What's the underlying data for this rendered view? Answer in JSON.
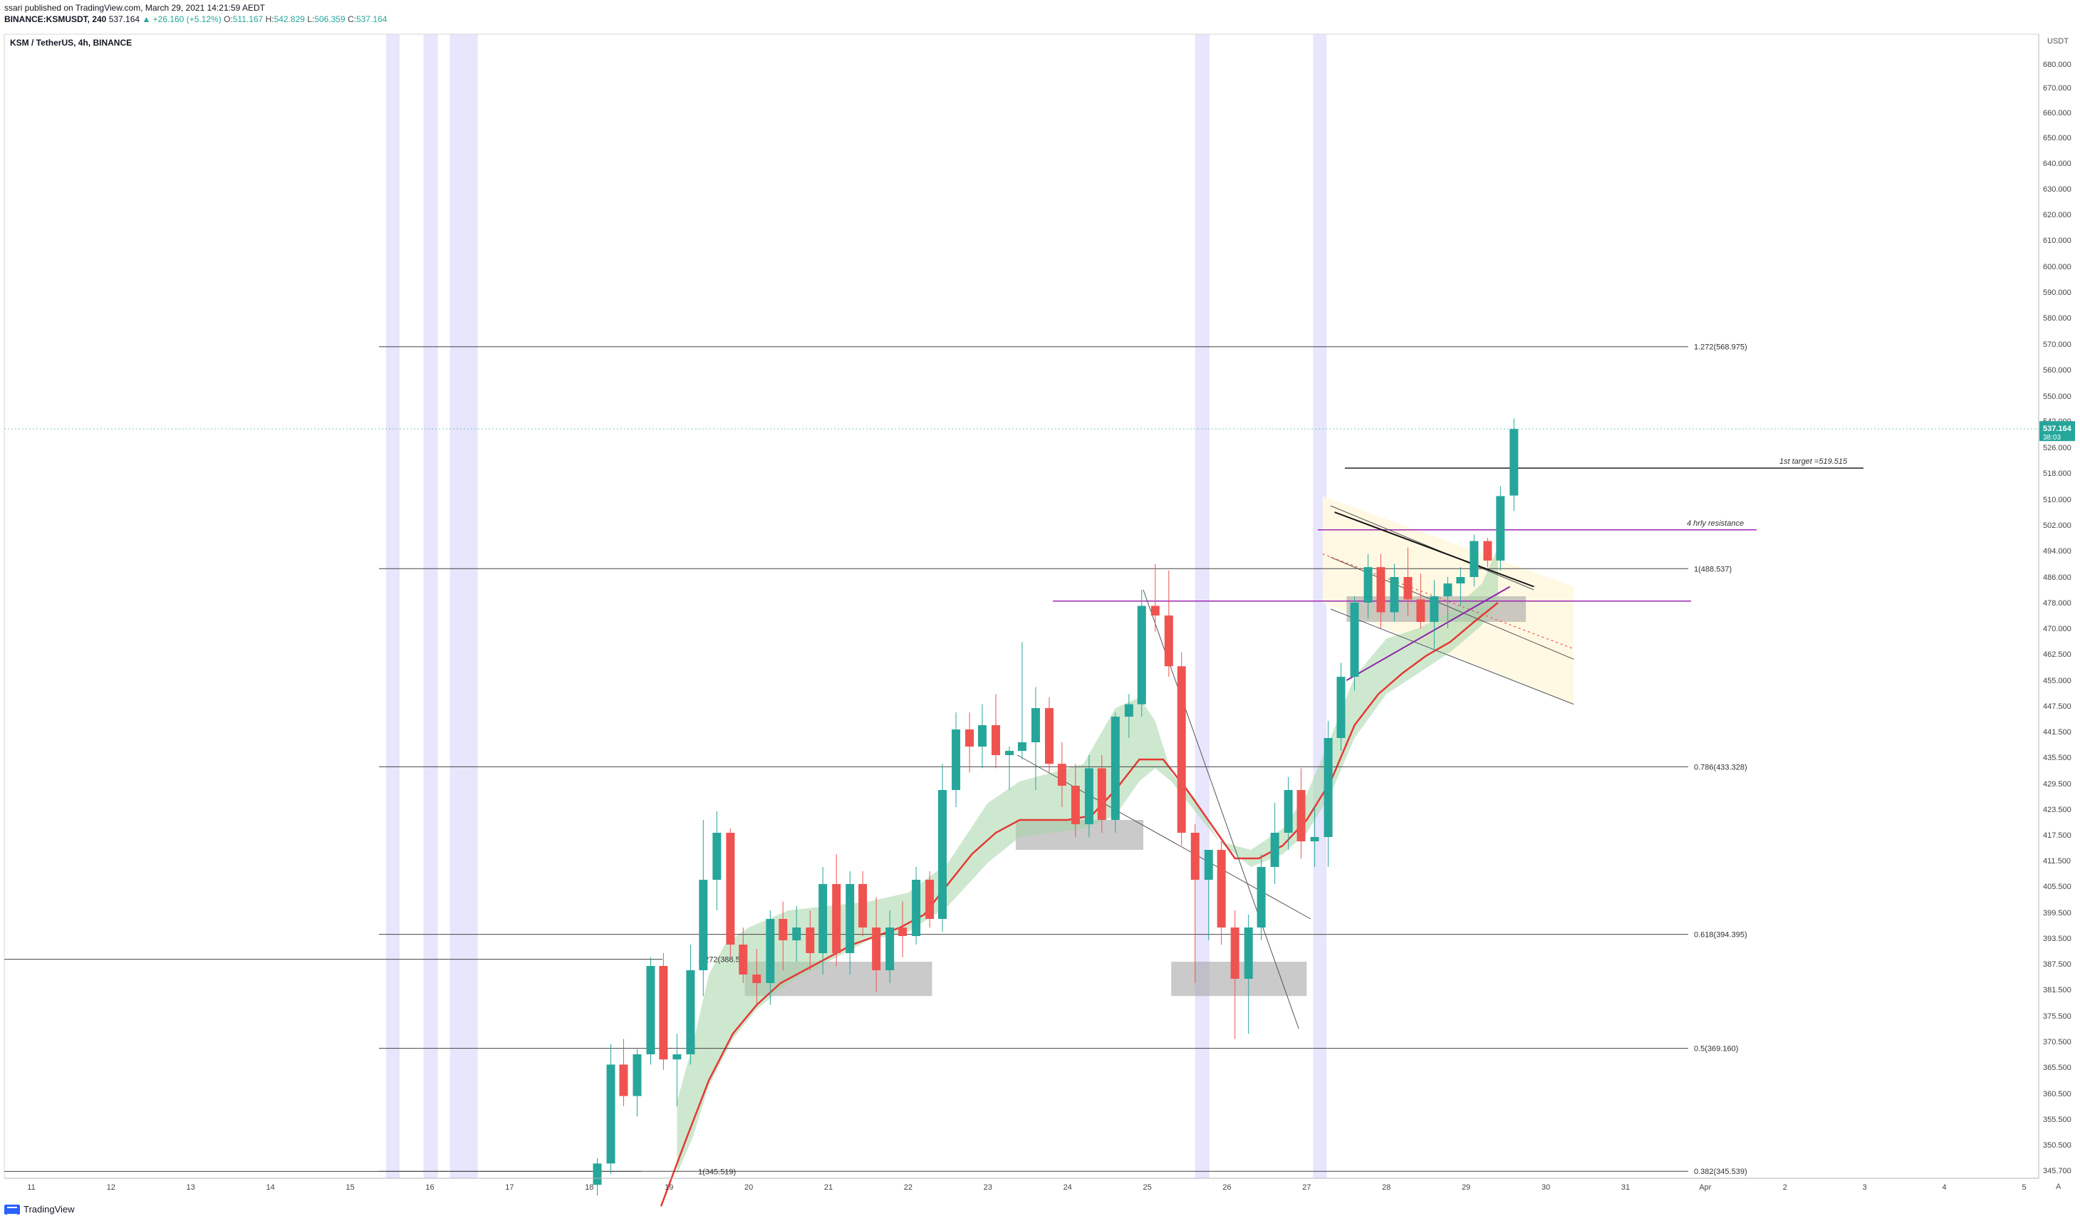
{
  "header": {
    "published": "ssari published on TradingView.com, March 29, 2021 14:21:59 AEDT",
    "ticker": "BINANCE:KSMUSDT, 240",
    "price": "537.164",
    "change": "▲ +26.160 (+5.12%)",
    "o_label": "O:",
    "o_value": "511.167",
    "h_label": "H:",
    "h_value": "542.829",
    "l_label": "L:",
    "l_value": "506.359",
    "c_label": "C:",
    "c_value": "537.164"
  },
  "legend": {
    "symbol": "KSM / TetherUS, 4h, BINANCE"
  },
  "footer": {
    "brand": "TradingView"
  },
  "controls": {
    "currency": "USDT",
    "log_toggle": "A"
  },
  "colors": {
    "up": "#26a69a",
    "down": "#ef5350",
    "band": "#e3e2fb",
    "cloud": "#a5d6a7",
    "ma": "#e53935",
    "magenta": "#9c27b0",
    "zone": "#9e9e9e",
    "price_tag": "#26a69a"
  },
  "chart_data": {
    "type": "candlestick",
    "timeframe": "4h",
    "x_tick_labels": [
      "11",
      "12",
      "13",
      "14",
      "15",
      "16",
      "17",
      "18",
      "19",
      "20",
      "21",
      "22",
      "23",
      "24",
      "25",
      "26",
      "27",
      "28",
      "29",
      "30",
      "31",
      "Apr",
      "2",
      "3",
      "4",
      "5"
    ],
    "y_tick_labels": [
      "680.000",
      "670.000",
      "660.000",
      "650.000",
      "640.000",
      "630.000",
      "620.000",
      "610.000",
      "600.000",
      "590.000",
      "580.000",
      "570.000",
      "560.000",
      "550.000",
      "542.000",
      "526.000",
      "518.000",
      "510.000",
      "502.000",
      "494.000",
      "486.000",
      "478.000",
      "470.000",
      "462.500",
      "455.000",
      "447.500",
      "441.500",
      "435.500",
      "429.500",
      "423.500",
      "417.500",
      "411.500",
      "405.500",
      "399.500",
      "393.500",
      "387.500",
      "381.500",
      "375.500",
      "370.500",
      "365.500",
      "360.500",
      "355.500",
      "350.500",
      "345.700"
    ],
    "last_price": {
      "value": "537.164",
      "countdown": "38:03"
    },
    "fib_levels": [
      {
        "label": "1.272(568.975)",
        "value": 568.975
      },
      {
        "label": "1(488.537)",
        "value": 488.537
      },
      {
        "label": "0.786(433.328)",
        "value": 433.328
      },
      {
        "label": "0.618(394.395)",
        "value": 394.395
      },
      {
        "label": "0.5(369.160)",
        "value": 369.16
      },
      {
        "label": "0.382(345.539)",
        "value": 345.539
      }
    ],
    "old_fib_labels": [
      {
        "label": "1.272(388.57)",
        "value": 388.57
      },
      {
        "label": "1(345.519)",
        "value": 345.519
      }
    ],
    "annotations": [
      {
        "text": "1st target =519.515",
        "value": 519.515
      },
      {
        "text": "4 hrly resistance",
        "value": 500.5
      }
    ],
    "candles": [
      {
        "t": 18.1,
        "o": 343.0,
        "h": 348.0,
        "l": 341.0,
        "c": 347.0
      },
      {
        "t": 18.27,
        "o": 347.0,
        "h": 370.0,
        "l": 345.0,
        "c": 366.0
      },
      {
        "t": 18.43,
        "o": 366.0,
        "h": 371.0,
        "l": 358.0,
        "c": 360.0
      },
      {
        "t": 18.6,
        "o": 360.0,
        "h": 369.0,
        "l": 356.0,
        "c": 368.0
      },
      {
        "t": 18.77,
        "o": 368.0,
        "h": 389.0,
        "l": 366.0,
        "c": 387.0
      },
      {
        "t": 18.93,
        "o": 387.0,
        "h": 390.0,
        "l": 365.0,
        "c": 367.0
      },
      {
        "t": 19.1,
        "o": 367.0,
        "h": 372.0,
        "l": 358.0,
        "c": 368.0
      },
      {
        "t": 19.27,
        "o": 368.0,
        "h": 392.0,
        "l": 366.0,
        "c": 386.0
      },
      {
        "t": 19.43,
        "o": 386.0,
        "h": 421.0,
        "l": 380.0,
        "c": 407.0
      },
      {
        "t": 19.6,
        "o": 407.0,
        "h": 423.0,
        "l": 400.0,
        "c": 418.0
      },
      {
        "t": 19.77,
        "o": 418.0,
        "h": 419.0,
        "l": 389.0,
        "c": 392.0
      },
      {
        "t": 19.93,
        "o": 392.0,
        "h": 396.0,
        "l": 383.0,
        "c": 385.0
      },
      {
        "t": 20.1,
        "o": 385.0,
        "h": 391.0,
        "l": 378.0,
        "c": 383.0
      },
      {
        "t": 20.27,
        "o": 383.0,
        "h": 400.0,
        "l": 378.0,
        "c": 398.0
      },
      {
        "t": 20.43,
        "o": 398.0,
        "h": 402.0,
        "l": 386.0,
        "c": 393.0
      },
      {
        "t": 20.6,
        "o": 393.0,
        "h": 401.0,
        "l": 388.0,
        "c": 396.0
      },
      {
        "t": 20.77,
        "o": 396.0,
        "h": 400.0,
        "l": 386.0,
        "c": 390.0
      },
      {
        "t": 20.93,
        "o": 390.0,
        "h": 410.0,
        "l": 385.0,
        "c": 406.0
      },
      {
        "t": 21.1,
        "o": 406.0,
        "h": 413.0,
        "l": 387.0,
        "c": 390.0
      },
      {
        "t": 21.27,
        "o": 390.0,
        "h": 409.0,
        "l": 385.0,
        "c": 406.0
      },
      {
        "t": 21.43,
        "o": 406.0,
        "h": 409.0,
        "l": 394.0,
        "c": 396.0
      },
      {
        "t": 21.6,
        "o": 396.0,
        "h": 403.0,
        "l": 381.0,
        "c": 386.0
      },
      {
        "t": 21.77,
        "o": 386.0,
        "h": 400.0,
        "l": 383.0,
        "c": 396.0
      },
      {
        "t": 21.93,
        "o": 396.0,
        "h": 402.0,
        "l": 389.0,
        "c": 394.0
      },
      {
        "t": 22.1,
        "o": 394.0,
        "h": 410.0,
        "l": 392.0,
        "c": 407.0
      },
      {
        "t": 22.27,
        "o": 407.0,
        "h": 409.0,
        "l": 396.0,
        "c": 398.0
      },
      {
        "t": 22.43,
        "o": 398.0,
        "h": 434.0,
        "l": 395.0,
        "c": 428.0
      },
      {
        "t": 22.6,
        "o": 428.0,
        "h": 446.0,
        "l": 424.0,
        "c": 442.0
      },
      {
        "t": 22.77,
        "o": 442.0,
        "h": 446.0,
        "l": 432.0,
        "c": 438.0
      },
      {
        "t": 22.93,
        "o": 438.0,
        "h": 448.0,
        "l": 433.0,
        "c": 443.0
      },
      {
        "t": 23.1,
        "o": 443.0,
        "h": 451.0,
        "l": 433.0,
        "c": 436.0
      },
      {
        "t": 23.27,
        "o": 436.0,
        "h": 438.0,
        "l": 428.0,
        "c": 437.0
      },
      {
        "t": 23.43,
        "o": 437.0,
        "h": 466.0,
        "l": 435.0,
        "c": 439.0
      },
      {
        "t": 23.6,
        "o": 439.0,
        "h": 453.0,
        "l": 428.0,
        "c": 447.0
      },
      {
        "t": 23.77,
        "o": 447.0,
        "h": 450.0,
        "l": 432.0,
        "c": 434.0
      },
      {
        "t": 23.93,
        "o": 434.0,
        "h": 439.0,
        "l": 424.0,
        "c": 429.0
      },
      {
        "t": 24.1,
        "o": 429.0,
        "h": 434.0,
        "l": 417.0,
        "c": 420.0
      },
      {
        "t": 24.27,
        "o": 420.0,
        "h": 436.0,
        "l": 417.0,
        "c": 433.0
      },
      {
        "t": 24.43,
        "o": 433.0,
        "h": 436.0,
        "l": 418.0,
        "c": 421.0
      },
      {
        "t": 24.6,
        "o": 421.0,
        "h": 446.0,
        "l": 418.0,
        "c": 445.0
      },
      {
        "t": 24.77,
        "o": 445.0,
        "h": 451.0,
        "l": 440.0,
        "c": 448.0
      },
      {
        "t": 24.93,
        "o": 448.0,
        "h": 482.0,
        "l": 445.0,
        "c": 477.0
      },
      {
        "t": 25.1,
        "o": 477.0,
        "h": 490.0,
        "l": 469.0,
        "c": 474.0
      },
      {
        "t": 25.27,
        "o": 474.0,
        "h": 488.0,
        "l": 456.0,
        "c": 459.0
      },
      {
        "t": 25.43,
        "o": 459.0,
        "h": 463.0,
        "l": 415.0,
        "c": 418.0
      },
      {
        "t": 25.6,
        "o": 418.0,
        "h": 420.0,
        "l": 383.0,
        "c": 407.0
      },
      {
        "t": 25.77,
        "o": 407.0,
        "h": 412.0,
        "l": 393.0,
        "c": 414.0
      },
      {
        "t": 25.93,
        "o": 414.0,
        "h": 416.0,
        "l": 392.0,
        "c": 396.0
      },
      {
        "t": 26.1,
        "o": 396.0,
        "h": 400.0,
        "l": 371.0,
        "c": 384.0
      },
      {
        "t": 26.27,
        "o": 384.0,
        "h": 399.0,
        "l": 372.0,
        "c": 396.0
      },
      {
        "t": 26.43,
        "o": 396.0,
        "h": 413.0,
        "l": 393.0,
        "c": 410.0
      },
      {
        "t": 26.6,
        "o": 410.0,
        "h": 425.0,
        "l": 406.0,
        "c": 418.0
      },
      {
        "t": 26.77,
        "o": 418.0,
        "h": 431.0,
        "l": 414.0,
        "c": 428.0
      },
      {
        "t": 26.93,
        "o": 428.0,
        "h": 433.0,
        "l": 412.0,
        "c": 416.0
      },
      {
        "t": 27.1,
        "o": 416.0,
        "h": 424.0,
        "l": 410.0,
        "c": 417.0
      },
      {
        "t": 27.27,
        "o": 417.0,
        "h": 444.0,
        "l": 410.0,
        "c": 440.0
      },
      {
        "t": 27.43,
        "o": 440.0,
        "h": 460.0,
        "l": 437.0,
        "c": 456.0
      },
      {
        "t": 27.6,
        "o": 456.0,
        "h": 480.0,
        "l": 452.0,
        "c": 478.0
      },
      {
        "t": 27.77,
        "o": 478.0,
        "h": 493.0,
        "l": 473.0,
        "c": 489.0
      },
      {
        "t": 27.93,
        "o": 489.0,
        "h": 493.0,
        "l": 470.0,
        "c": 475.0
      },
      {
        "t": 28.1,
        "o": 475.0,
        "h": 490.0,
        "l": 472.0,
        "c": 486.0
      },
      {
        "t": 28.27,
        "o": 486.0,
        "h": 495.0,
        "l": 474.0,
        "c": 479.0
      },
      {
        "t": 28.43,
        "o": 479.0,
        "h": 487.0,
        "l": 470.0,
        "c": 472.0
      },
      {
        "t": 28.6,
        "o": 472.0,
        "h": 485.0,
        "l": 464.0,
        "c": 480.0
      },
      {
        "t": 28.77,
        "o": 480.0,
        "h": 486.0,
        "l": 470.0,
        "c": 484.0
      },
      {
        "t": 28.93,
        "o": 484.0,
        "h": 489.0,
        "l": 477.0,
        "c": 486.0
      },
      {
        "t": 29.1,
        "o": 486.0,
        "h": 499.0,
        "l": 483.0,
        "c": 497.0
      },
      {
        "t": 29.27,
        "o": 497.0,
        "h": 498.0,
        "l": 489.0,
        "c": 491.0
      },
      {
        "t": 29.43,
        "o": 491.0,
        "h": 514.0,
        "l": 488.0,
        "c": 511.0
      },
      {
        "t": 29.6,
        "o": 511.167,
        "h": 542.829,
        "l": 506.359,
        "c": 537.164
      }
    ],
    "ma_line": [
      [
        18.9,
        339
      ],
      [
        19.2,
        351
      ],
      [
        19.5,
        363
      ],
      [
        19.8,
        372
      ],
      [
        20.1,
        378
      ],
      [
        20.4,
        383
      ],
      [
        20.7,
        386
      ],
      [
        21.0,
        389
      ],
      [
        21.3,
        392
      ],
      [
        21.6,
        394
      ],
      [
        21.9,
        396
      ],
      [
        22.2,
        399
      ],
      [
        22.5,
        406
      ],
      [
        22.8,
        413
      ],
      [
        23.1,
        418
      ],
      [
        23.4,
        421
      ],
      [
        23.7,
        421
      ],
      [
        24.0,
        421
      ],
      [
        24.3,
        422
      ],
      [
        24.6,
        428
      ],
      [
        24.9,
        435
      ],
      [
        25.2,
        435
      ],
      [
        25.5,
        428
      ],
      [
        25.8,
        420
      ],
      [
        26.1,
        412
      ],
      [
        26.4,
        412
      ],
      [
        26.7,
        415
      ],
      [
        27.0,
        421
      ],
      [
        27.3,
        430
      ],
      [
        27.6,
        443
      ],
      [
        27.9,
        451
      ],
      [
        28.2,
        457
      ],
      [
        28.5,
        462
      ],
      [
        28.8,
        466
      ],
      [
        29.1,
        472
      ],
      [
        29.4,
        478
      ]
    ],
    "cloud_upper": [
      [
        19.1,
        359
      ],
      [
        19.3,
        370
      ],
      [
        19.5,
        385
      ],
      [
        19.7,
        392
      ],
      [
        20.0,
        396
      ],
      [
        20.5,
        400
      ],
      [
        21.0,
        401
      ],
      [
        21.5,
        402
      ],
      [
        22.0,
        404
      ],
      [
        22.5,
        411
      ],
      [
        23.0,
        425
      ],
      [
        23.4,
        430
      ],
      [
        23.8,
        432
      ],
      [
        24.2,
        434
      ],
      [
        24.6,
        447
      ],
      [
        24.9,
        450
      ],
      [
        25.1,
        444
      ],
      [
        25.3,
        432
      ],
      [
        25.6,
        426
      ],
      [
        25.9,
        416
      ],
      [
        26.3,
        414
      ],
      [
        26.7,
        419
      ],
      [
        27.0,
        427
      ],
      [
        27.3,
        440
      ],
      [
        27.6,
        456
      ],
      [
        28.0,
        467
      ],
      [
        28.4,
        470
      ],
      [
        28.8,
        475
      ],
      [
        29.2,
        484
      ],
      [
        29.4,
        495
      ]
    ],
    "cloud_lower": [
      [
        19.1,
        345
      ],
      [
        19.3,
        352
      ],
      [
        19.5,
        362
      ],
      [
        19.8,
        371
      ],
      [
        20.1,
        377
      ],
      [
        20.5,
        383
      ],
      [
        21.0,
        388
      ],
      [
        21.5,
        393
      ],
      [
        22.0,
        395
      ],
      [
        22.5,
        401
      ],
      [
        23.0,
        411
      ],
      [
        23.4,
        417
      ],
      [
        23.8,
        418
      ],
      [
        24.2,
        419
      ],
      [
        24.6,
        422
      ],
      [
        24.9,
        430
      ],
      [
        25.1,
        433
      ],
      [
        25.3,
        430
      ],
      [
        25.6,
        423
      ],
      [
        25.9,
        416
      ],
      [
        26.3,
        410
      ],
      [
        26.7,
        413
      ],
      [
        27.0,
        418
      ],
      [
        27.3,
        427
      ],
      [
        27.6,
        440
      ],
      [
        28.0,
        451
      ],
      [
        28.4,
        457
      ],
      [
        28.8,
        463
      ],
      [
        29.2,
        471
      ],
      [
        29.4,
        478
      ]
    ],
    "session_bands": [
      [
        15.45,
        15.62
      ],
      [
        15.92,
        16.1
      ],
      [
        16.25,
        16.6
      ],
      [
        25.6,
        25.78
      ],
      [
        27.08,
        27.25
      ]
    ],
    "x_range": [
      10.7,
      35.0
    ],
    "grid": false,
    "price_scale": "right"
  }
}
